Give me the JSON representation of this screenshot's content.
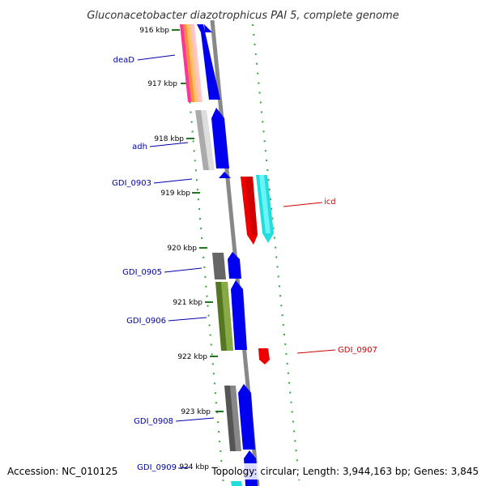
{
  "title": "Gluconacetobacter diazotrophicus PAI 5, complete genome",
  "footer": {
    "accession": "Accession: NC_010125",
    "summary": "Topology: circular; Length: 3,944,163 bp; Genes: 3,845"
  },
  "ticks": [
    "916 kbp",
    "917 kbp",
    "918 kbp",
    "919 kbp",
    "920 kbp",
    "921 kbp",
    "922 kbp",
    "923 kbp",
    "924 kbp"
  ],
  "genes": [
    {
      "label": "deaD",
      "strand": "-",
      "color": "#0000cc"
    },
    {
      "label": "adh",
      "strand": "-",
      "color": "#0000cc"
    },
    {
      "label": "GDI_0903",
      "strand": "-",
      "color": "#0000cc"
    },
    {
      "label": "icd",
      "strand": "+",
      "color": "#dd0000"
    },
    {
      "label": "GDI_0905",
      "strand": "-",
      "color": "#0000cc"
    },
    {
      "label": "GDI_0906",
      "strand": "-",
      "color": "#0000cc"
    },
    {
      "label": "GDI_0907",
      "strand": "+",
      "color": "#dd0000"
    },
    {
      "label": "GDI_0908",
      "strand": "-",
      "color": "#0000cc"
    },
    {
      "label": "GDI_0909",
      "strand": "-",
      "color": "#0000cc"
    }
  ],
  "colors": {
    "backbone": "#888888",
    "tick": "#227722",
    "gc_skew_dots": "#33aa33",
    "reverse_strand": "#0000ee",
    "forward_strand": "#ee0000",
    "forward_strand_secondary": "#22dddd"
  }
}
